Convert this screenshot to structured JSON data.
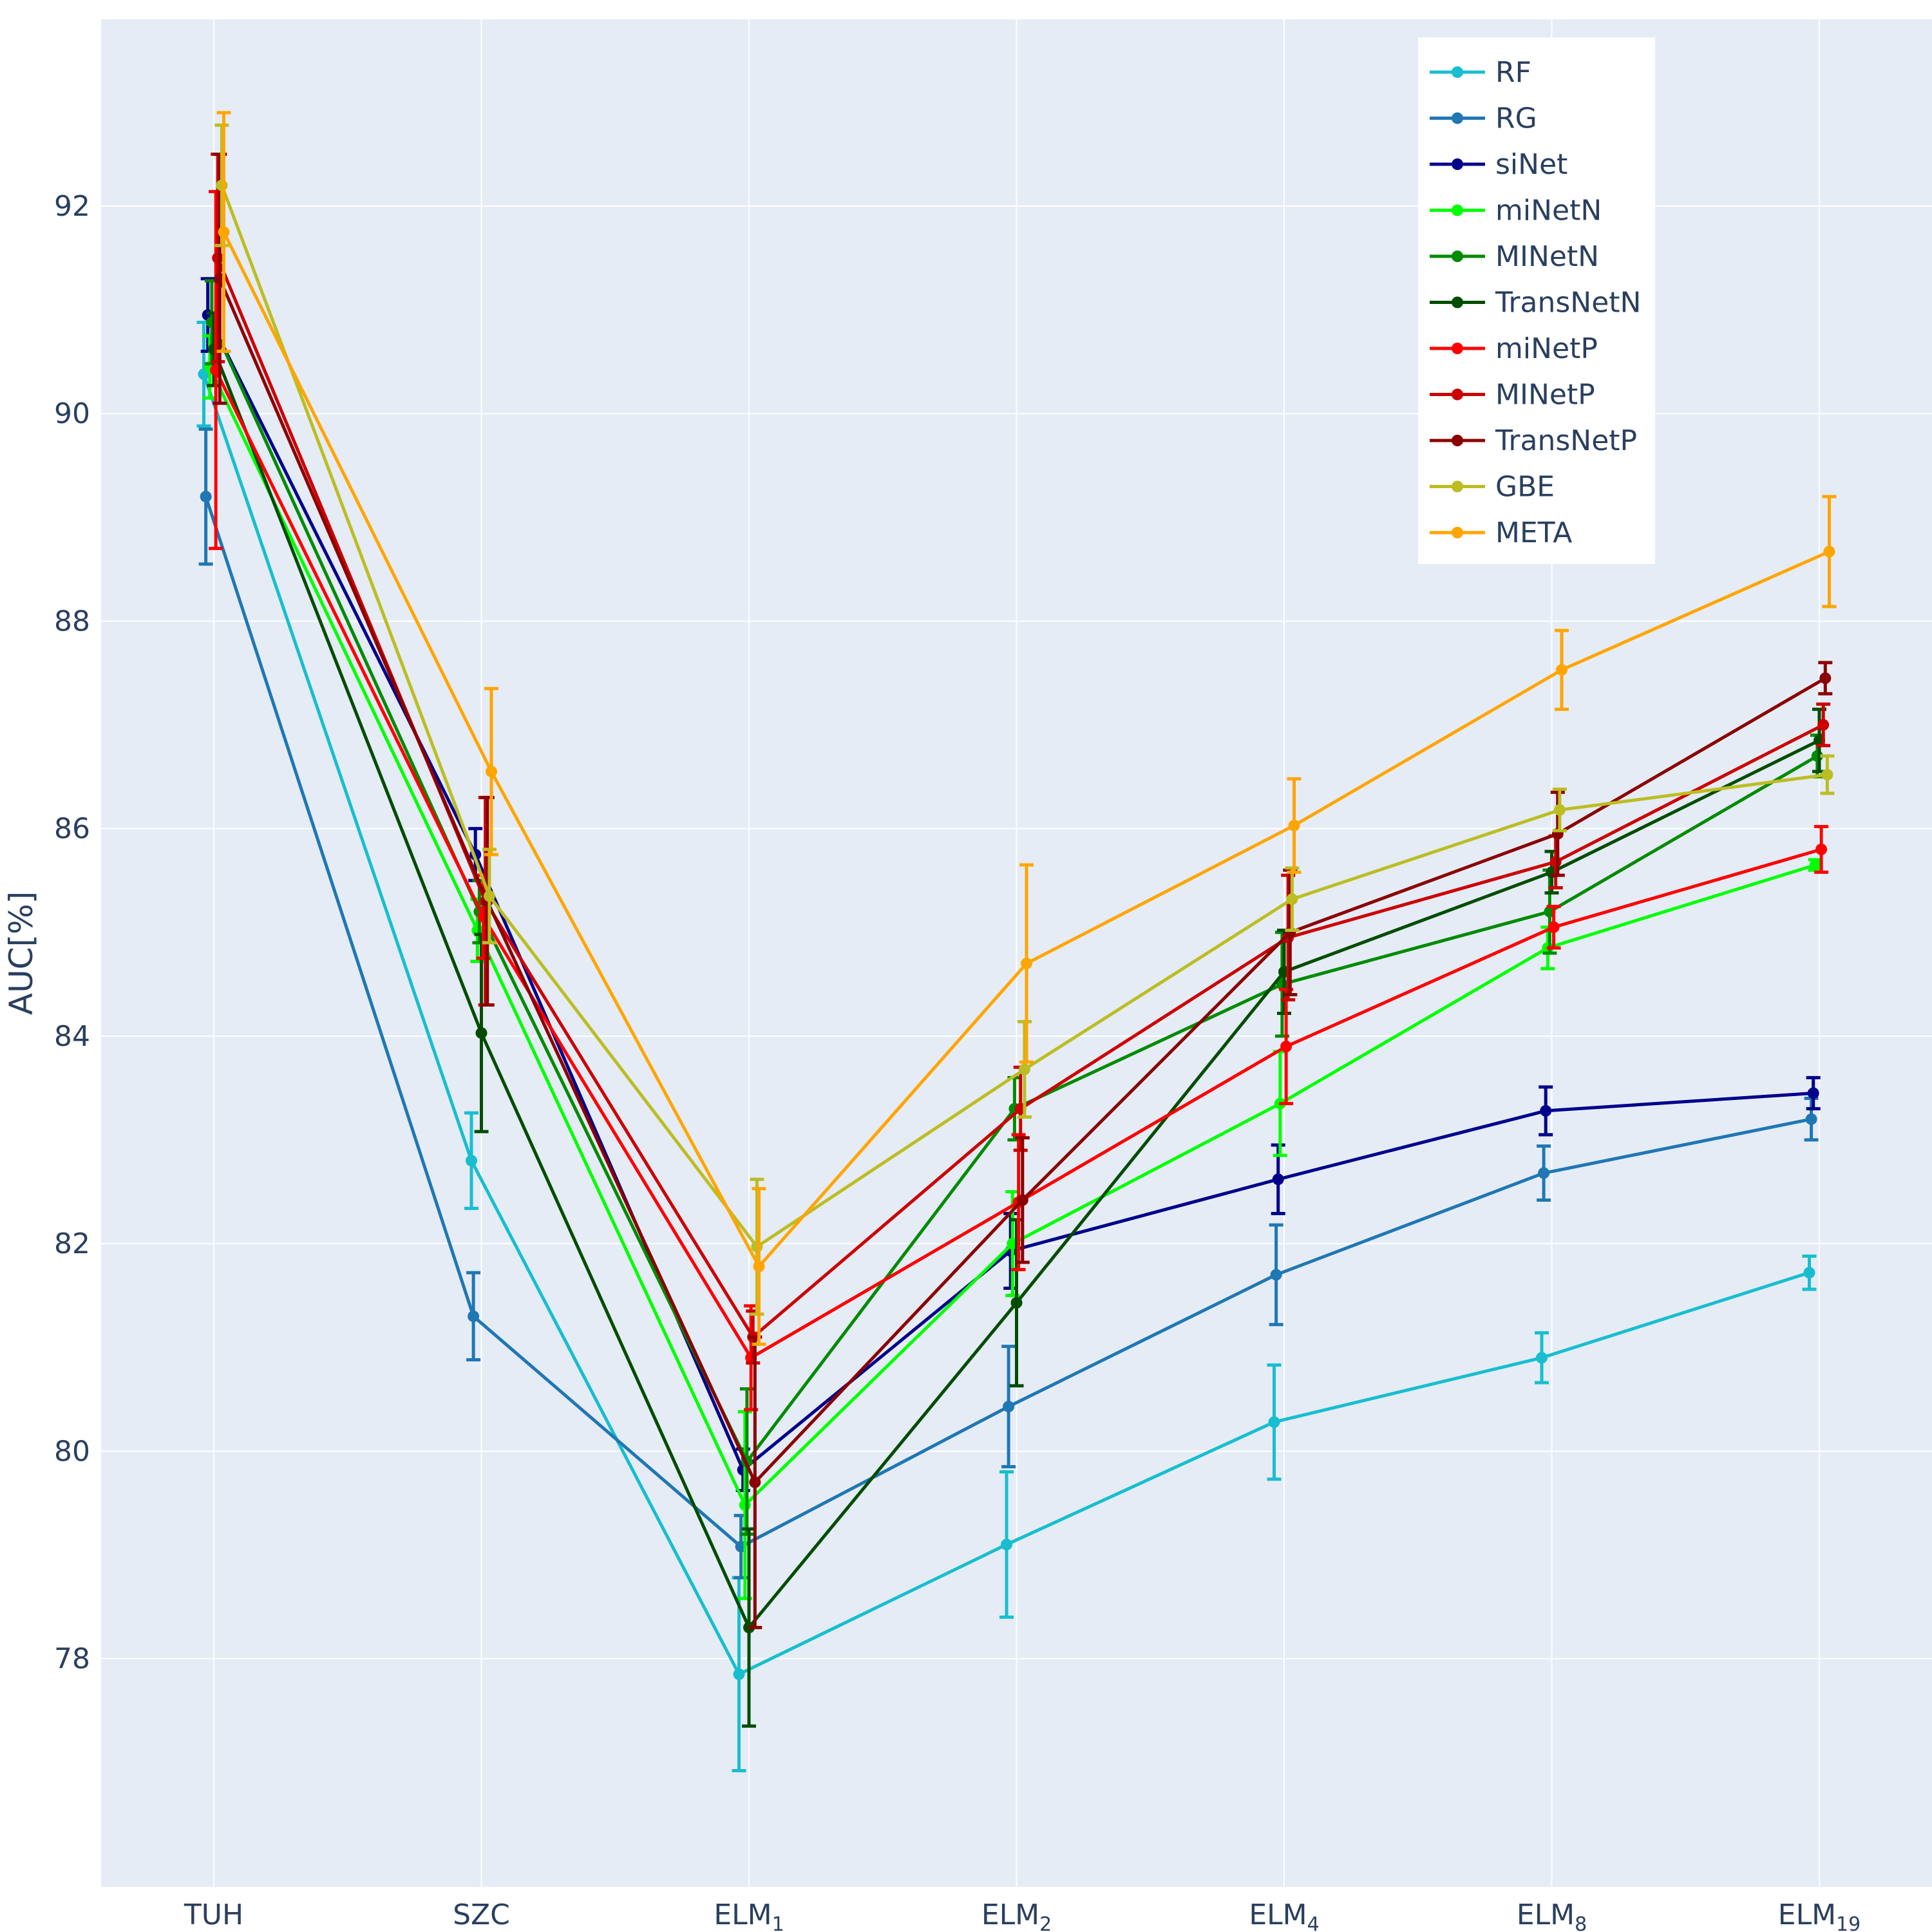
{
  "chart_data": {
    "type": "line",
    "ylabel": "AUC[%]",
    "ylim": [
      75.8,
      93.8
    ],
    "yticks": [
      78,
      80,
      82,
      84,
      86,
      88,
      90,
      92
    ],
    "grid": true,
    "legend_position": "top-right",
    "background": "#e5ecf6",
    "categories": [
      {
        "base": "TUH",
        "sub": ""
      },
      {
        "base": "SZC",
        "sub": ""
      },
      {
        "base": "ELM",
        "sub": "1"
      },
      {
        "base": "ELM",
        "sub": "2"
      },
      {
        "base": "ELM",
        "sub": "4"
      },
      {
        "base": "ELM",
        "sub": "8"
      },
      {
        "base": "ELM",
        "sub": "19"
      }
    ],
    "series": [
      {
        "name": "RF",
        "color": "#17becf",
        "values": [
          90.38,
          82.8,
          77.85,
          79.1,
          80.28,
          80.9,
          81.72
        ],
        "errors": [
          0.5,
          0.46,
          0.93,
          0.7,
          0.55,
          0.24,
          0.16
        ]
      },
      {
        "name": "RG",
        "color": "#1f77b4",
        "values": [
          89.2,
          81.3,
          79.08,
          80.43,
          81.7,
          82.68,
          83.2
        ],
        "errors": [
          0.65,
          0.42,
          0.3,
          0.58,
          0.48,
          0.26,
          0.2
        ]
      },
      {
        "name": "siNet",
        "color": "#00008b",
        "values": [
          90.95,
          85.75,
          79.82,
          81.93,
          82.62,
          83.28,
          83.45
        ],
        "errors": [
          0.35,
          0.25,
          0.2,
          0.36,
          0.33,
          0.23,
          0.15
        ]
      },
      {
        "name": "miNetN",
        "color": "#00ff00",
        "values": [
          90.45,
          85.02,
          79.48,
          82.0,
          83.35,
          84.85,
          85.65
        ],
        "errors": [
          0.3,
          0.3,
          0.9,
          0.5,
          0.5,
          0.2,
          0.05
        ]
      },
      {
        "name": "MINetN",
        "color": "#008b00",
        "values": [
          90.88,
          85.2,
          79.9,
          83.3,
          84.5,
          85.2,
          86.7
        ],
        "errors": [
          0.4,
          0.3,
          0.7,
          0.3,
          0.5,
          0.4,
          0.2
        ]
      },
      {
        "name": "TransNetN",
        "color": "#004d00",
        "values": [
          90.62,
          84.03,
          78.3,
          81.43,
          84.62,
          85.58,
          86.85
        ],
        "errors": [
          0.35,
          0.95,
          0.95,
          0.8,
          0.4,
          0.2,
          0.3
        ]
      },
      {
        "name": "miNetP",
        "color": "#ff0000",
        "values": [
          90.42,
          85.15,
          80.9,
          82.4,
          83.9,
          85.05,
          85.8
        ],
        "errors": [
          1.72,
          0.4,
          0.5,
          0.65,
          0.55,
          0.2,
          0.22
        ]
      },
      {
        "name": "MINetP",
        "color": "#cc0000",
        "values": [
          91.5,
          85.3,
          81.1,
          83.3,
          84.95,
          85.68,
          87.0
        ],
        "errors": [
          1.0,
          1.0,
          0.25,
          0.4,
          0.6,
          0.25,
          0.2
        ]
      },
      {
        "name": "TransNetP",
        "color": "#8b0000",
        "values": [
          91.3,
          85.3,
          79.7,
          82.42,
          85.0,
          85.95,
          87.45
        ],
        "errors": [
          1.2,
          1.0,
          1.4,
          0.6,
          0.6,
          0.4,
          0.15
        ]
      },
      {
        "name": "GBE",
        "color": "#bcbd22",
        "values": [
          92.2,
          85.35,
          81.97,
          83.68,
          85.32,
          86.18,
          86.52
        ],
        "errors": [
          0.58,
          0.45,
          0.65,
          0.46,
          0.3,
          0.2,
          0.18
        ]
      },
      {
        "name": "META",
        "color": "#ffa500",
        "values": [
          91.75,
          86.55,
          81.78,
          84.7,
          86.03,
          87.53,
          88.67
        ],
        "errors": [
          1.15,
          0.8,
          0.75,
          0.95,
          0.45,
          0.38,
          0.53
        ]
      }
    ]
  }
}
